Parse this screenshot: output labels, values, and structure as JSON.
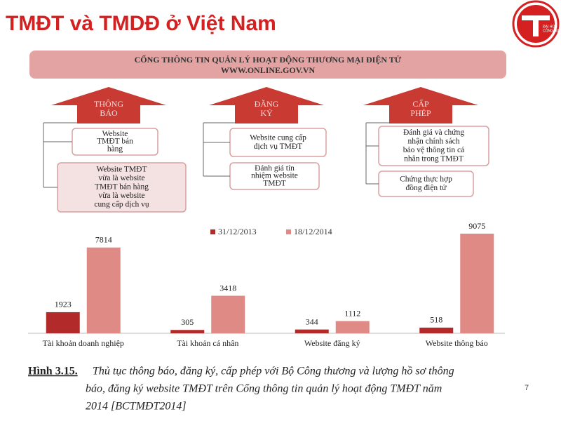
{
  "header": {
    "title": "TMĐT và TMDĐ ở Việt Nam"
  },
  "logo": {
    "lines": [
      "ĐẠI HỌC",
      "CÔNG NGHỆ"
    ]
  },
  "banner": {
    "lines": [
      "CỔNG THÔNG TIN QUẢN LÝ HOẠT ĐỘNG THƯƠNG MẠI ĐIỆN TỬ",
      "WWW.ONLINE.GOV.VN"
    ]
  },
  "diagram": {
    "columns": [
      {
        "arrow": [
          "THÔNG",
          "BÁO"
        ],
        "boxes": [
          [
            "Website",
            "TMĐT bán",
            "hàng"
          ],
          [
            "Website TMĐT",
            "vừa là website",
            "TMĐT bán hàng",
            "vừa là website",
            "cung cấp dịch vụ"
          ]
        ]
      },
      {
        "arrow": [
          "ĐĂNG",
          "KÝ"
        ],
        "boxes": [
          [
            "Website cung cấp",
            "dịch vụ TMĐT"
          ],
          [
            "Đánh giá tín",
            "nhiệm website",
            "TMĐT"
          ]
        ]
      },
      {
        "arrow": [
          "CẤP",
          "PHÉP"
        ],
        "boxes": [
          [
            "Đánh giá và chứng",
            "nhận chính sách",
            "bảo vệ thông tin cá",
            "nhân trong TMĐT"
          ],
          [
            "Chứng thực hợp",
            "đồng điện tử"
          ]
        ]
      }
    ]
  },
  "chart_data": {
    "type": "bar",
    "categories": [
      "Tài khoản doanh nghiệp",
      "Tài khoản cá nhân",
      "Website đăng ký",
      "Website thông báo"
    ],
    "series": [
      {
        "name": "31/12/2013",
        "color": "#b22a2a",
        "values": [
          1923,
          305,
          344,
          518
        ]
      },
      {
        "name": "18/12/2014",
        "color": "#e08a86",
        "values": [
          7814,
          3418,
          1112,
          9075
        ]
      }
    ]
  },
  "caption": {
    "label": "Hình 3.15.",
    "lines": [
      "Thủ tục thông báo, đăng ký, cấp phép với Bộ Công thương và lượng hồ sơ thông",
      "báo, đăng ký website TMĐT trên Cổng thông tin quản lý hoạt động TMĐT năm",
      "2014 [BCTMĐT2014]"
    ]
  },
  "page_number": "7"
}
